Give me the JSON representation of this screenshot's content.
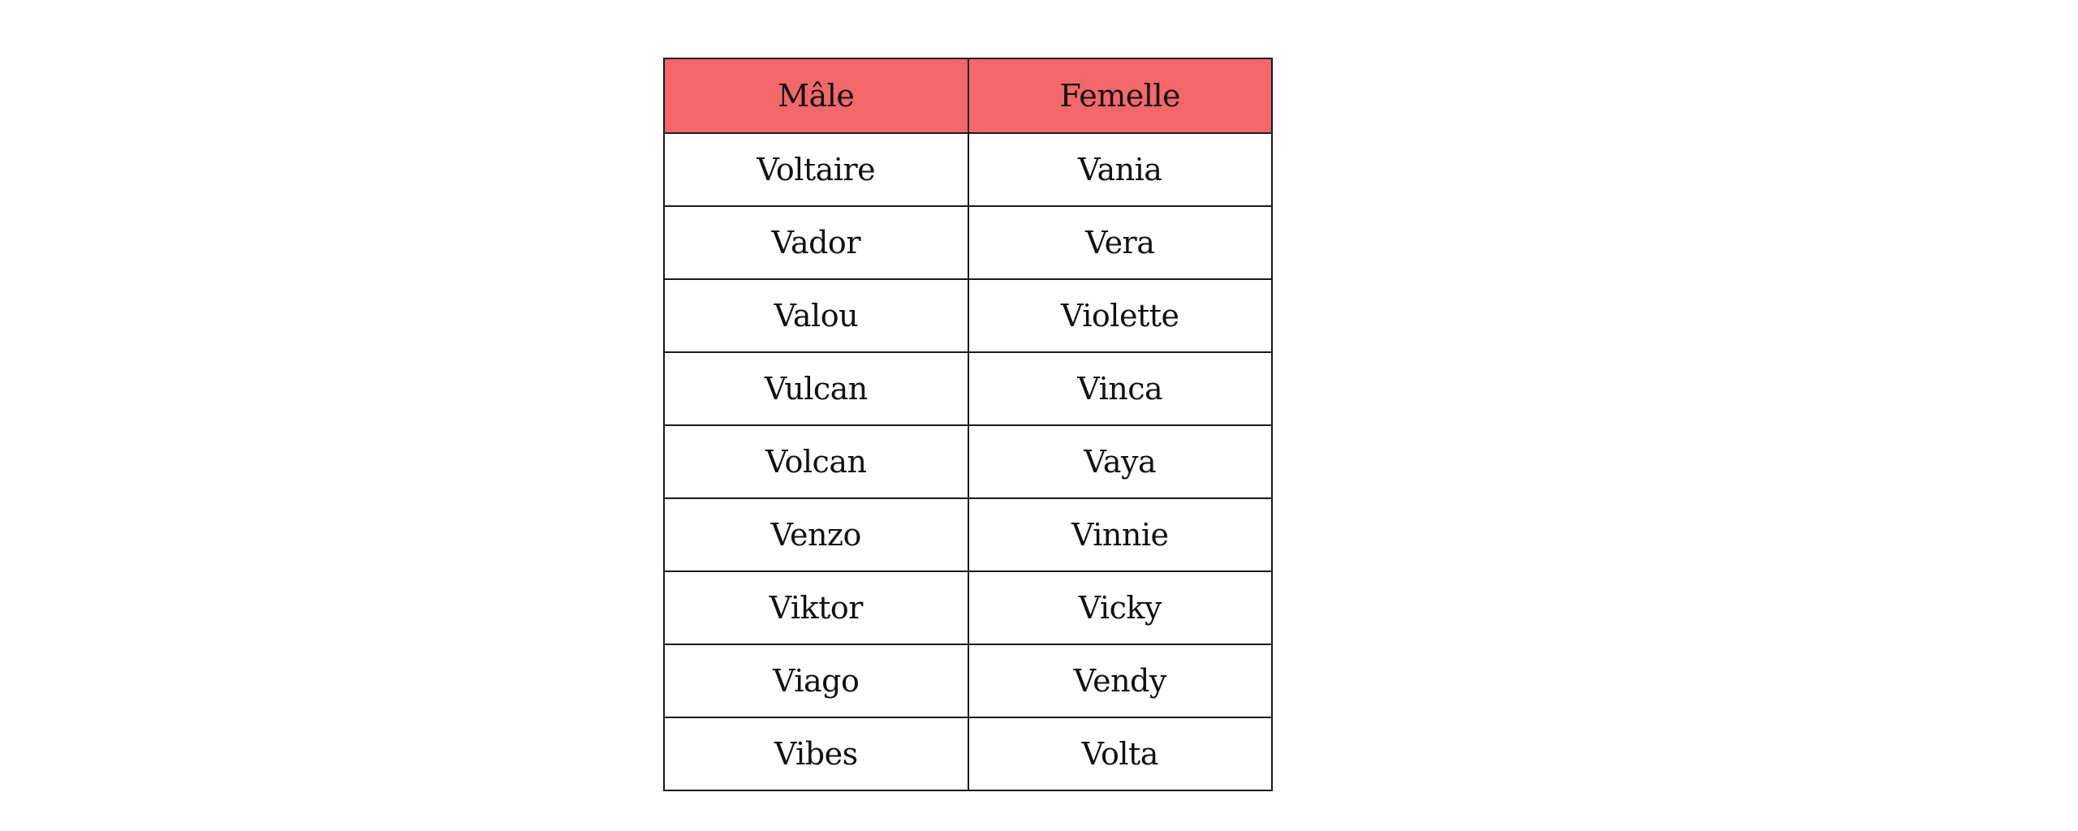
{
  "table": {
    "header_color": "#f4676a",
    "columns": [
      "Mâle",
      "Femelle"
    ],
    "rows": [
      [
        "Voltaire",
        "Vania"
      ],
      [
        "Vador",
        "Vera"
      ],
      [
        "Valou",
        "Violette"
      ],
      [
        "Vulcan",
        "Vinca"
      ],
      [
        "Volcan",
        "Vaya"
      ],
      [
        "Venzo",
        "Vinnie"
      ],
      [
        "Viktor",
        "Vicky"
      ],
      [
        "Viago",
        "Vendy"
      ],
      [
        "Vibes",
        "Volta"
      ]
    ]
  }
}
